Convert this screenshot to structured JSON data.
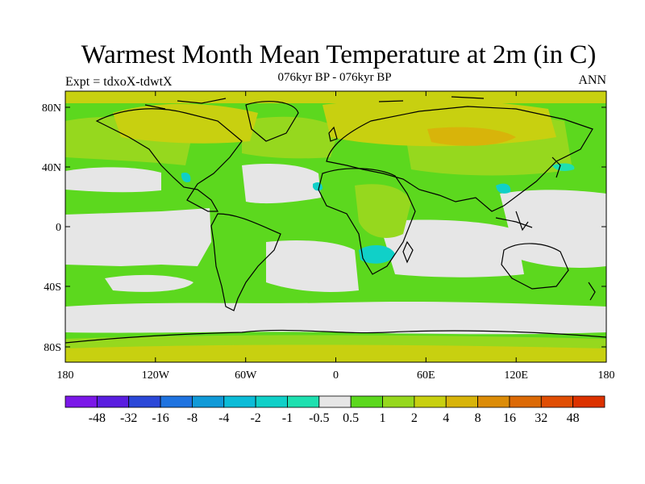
{
  "title": "Warmest Month Mean Temperature at 2m (in C)",
  "subtitle": "076kyr BP - 076kyr BP",
  "experiment_label": "Expt = tdxoX-tdwtX",
  "period_label": "ANN",
  "lat_ticks": [
    "80N",
    "40N",
    "0",
    "40S",
    "80S"
  ],
  "lon_ticks": [
    "180",
    "120W",
    "60W",
    "0",
    "60E",
    "120E",
    "180"
  ],
  "colorbar": {
    "labels": [
      "-48",
      "-32",
      "-16",
      "-8",
      "-4",
      "-2",
      "-1",
      "-0.5",
      "0.5",
      "1",
      "2",
      "4",
      "8",
      "16",
      "32",
      "48"
    ],
    "colors": [
      "#7b18e8",
      "#5a1ee0",
      "#2b48d8",
      "#1f73e0",
      "#119ad8",
      "#0cbcd8",
      "#10d0c8",
      "#1ee0b0",
      "#e6e6e6",
      "#5cd81e",
      "#96d81e",
      "#c8d010",
      "#d8b40a",
      "#dc8c08",
      "#dc6a06",
      "#e04e04",
      "#dc3200"
    ]
  }
}
